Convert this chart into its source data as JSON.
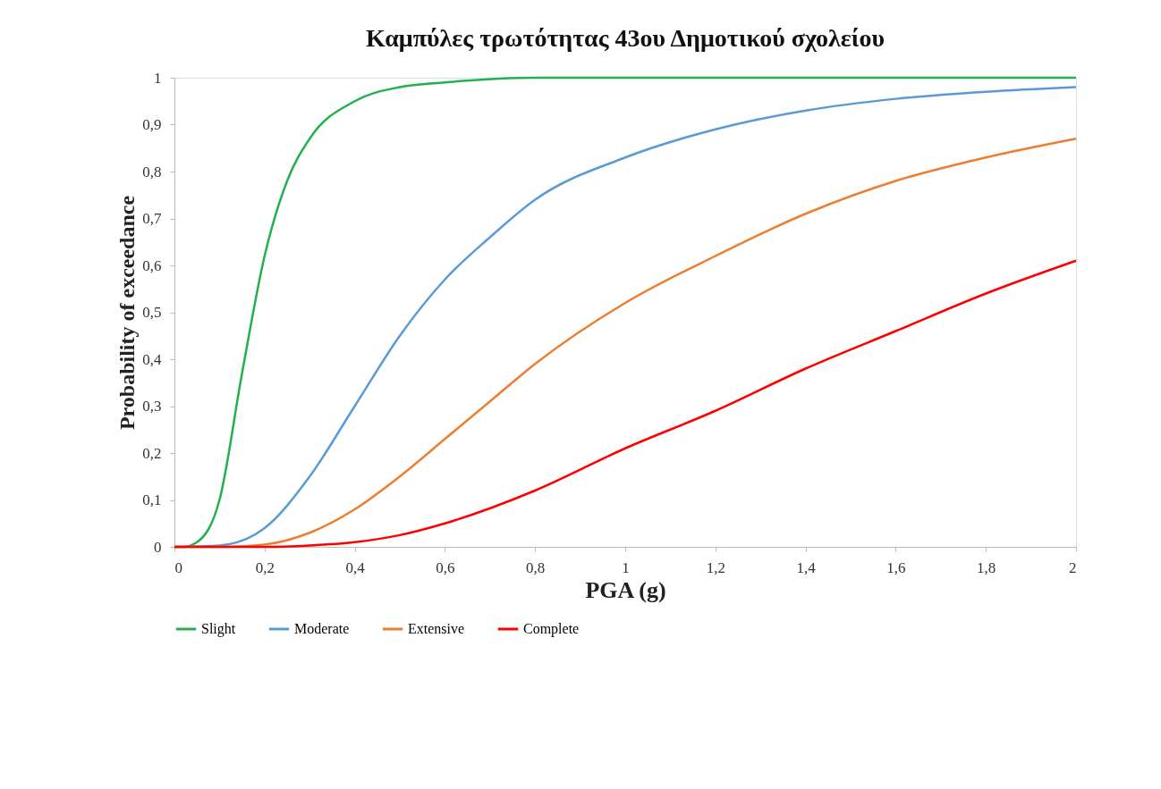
{
  "chart_data": {
    "type": "line",
    "title": "Καμπύλες τρωτότητας 43ου Δημοτικού σχολείου",
    "xlabel": "PGA (g)",
    "ylabel": "Probability of exceedance",
    "xlim": [
      0,
      2
    ],
    "ylim": [
      0,
      1
    ],
    "xticks": [
      0,
      {
        "value": 0.2,
        "label": "0,2"
      },
      {
        "value": 0.4,
        "label": "0,4"
      },
      {
        "value": 0.6,
        "label": "0,6"
      },
      {
        "value": 0.8,
        "label": "0,8"
      },
      1,
      {
        "value": 1.2,
        "label": "1,2"
      },
      {
        "value": 1.4,
        "label": "1,4"
      },
      {
        "value": 1.6,
        "label": "1,6"
      },
      {
        "value": 1.8,
        "label": "1,8"
      },
      2
    ],
    "yticks": [
      0,
      {
        "value": 0.1,
        "label": "0,1"
      },
      {
        "value": 0.2,
        "label": "0,2"
      },
      {
        "value": 0.3,
        "label": "0,3"
      },
      {
        "value": 0.4,
        "label": "0,4"
      },
      {
        "value": 0.5,
        "label": "0,5"
      },
      {
        "value": 0.6,
        "label": "0,6"
      },
      {
        "value": 0.7,
        "label": "0,7"
      },
      {
        "value": 0.8,
        "label": "0,8"
      },
      {
        "value": 0.9,
        "label": "0,9"
      },
      1
    ],
    "grid": false,
    "legend": "bottom",
    "marker": "none",
    "line_style": "solid",
    "series": [
      {
        "name": "Slight",
        "color": "#22b14c",
        "x": [
          0,
          0.02,
          0.05,
          0.1,
          0.15,
          0.2,
          0.25,
          0.3,
          0.4,
          0.5,
          0.6,
          0.8,
          1,
          1.5,
          2
        ],
        "values": [
          0,
          0,
          0.01,
          0.1,
          0.37,
          0.62,
          0.78,
          0.87,
          0.95,
          0.98,
          0.99,
          1,
          1,
          1,
          1
        ]
      },
      {
        "name": "Moderate",
        "color": "#5b9bd5",
        "x": [
          0,
          0.1,
          0.2,
          0.3,
          0.4,
          0.5,
          0.6,
          0.7,
          0.8,
          1,
          1.2,
          1.4,
          1.6,
          1.8,
          2
        ],
        "values": [
          0,
          0.003,
          0.04,
          0.15,
          0.3,
          0.45,
          0.57,
          0.66,
          0.74,
          0.83,
          0.89,
          0.93,
          0.955,
          0.97,
          0.98
        ]
      },
      {
        "name": "Extensive",
        "color": "#ed7d31",
        "x": [
          0,
          0.1,
          0.2,
          0.3,
          0.4,
          0.5,
          0.6,
          0.7,
          0.8,
          1,
          1.2,
          1.4,
          1.6,
          1.8,
          2
        ],
        "values": [
          0,
          0,
          0.005,
          0.03,
          0.08,
          0.15,
          0.23,
          0.31,
          0.39,
          0.52,
          0.62,
          0.71,
          0.78,
          0.83,
          0.87
        ]
      },
      {
        "name": "Complete",
        "color": "#ff0000",
        "x": [
          0,
          0.2,
          0.3,
          0.4,
          0.5,
          0.6,
          0.8,
          1,
          1.2,
          1.4,
          1.6,
          1.8,
          2
        ],
        "values": [
          0,
          0,
          0.003,
          0.01,
          0.025,
          0.05,
          0.12,
          0.21,
          0.29,
          0.38,
          0.46,
          0.54,
          0.61
        ]
      }
    ]
  }
}
